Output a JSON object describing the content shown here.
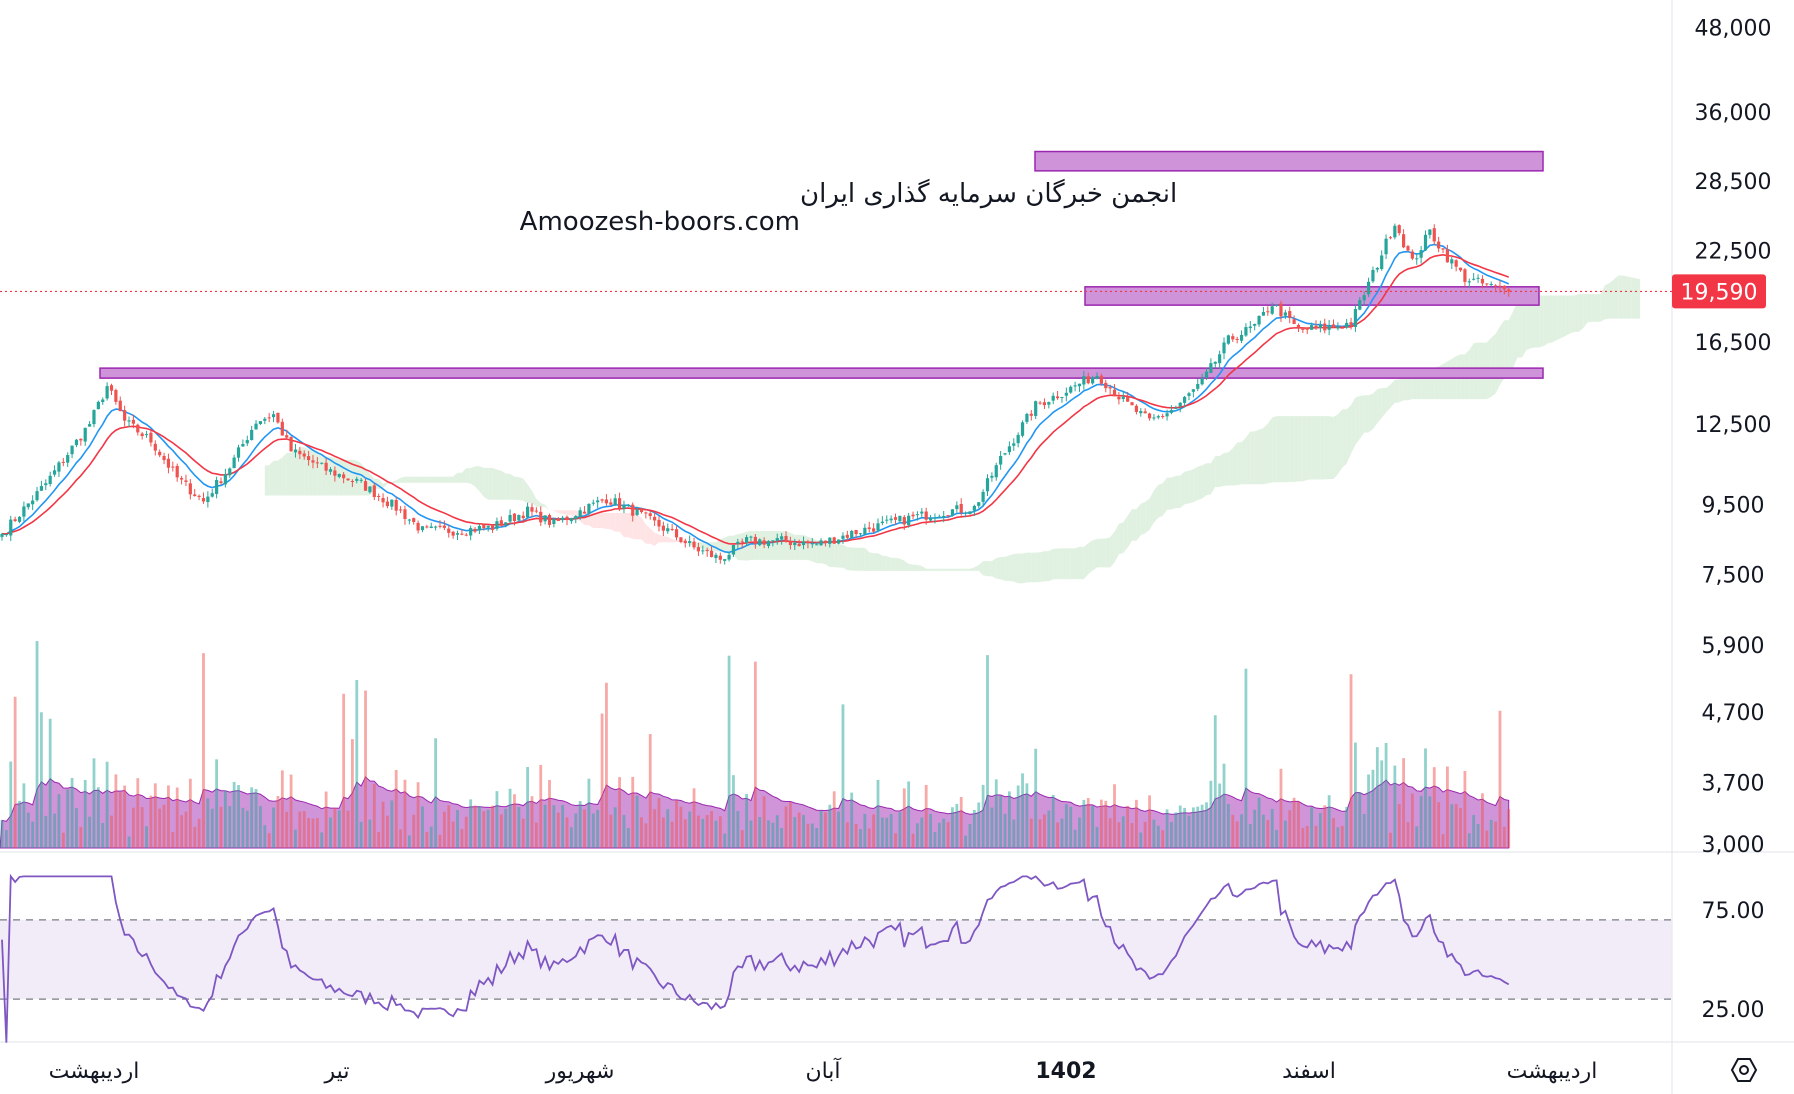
{
  "watermark": {
    "line1": "انجمن خبرگان سرمایه گذاری ایران",
    "line2": "Amoozesh-boors.com"
  },
  "icons": {
    "settings": "gear-hexagon-icon"
  },
  "colors": {
    "up": "#26a69a",
    "down": "#ef5350",
    "zone": "#ce93d8",
    "zone_border": "#9c27b0",
    "ema_fast": "#2196f3",
    "ema_slow": "#f23645",
    "rsi": "#7e57c2",
    "cloud_up": "#c8e6c9",
    "cloud_down": "#ffcdd2",
    "last_price": "#f23645",
    "vol_ma": "#ba68c8"
  },
  "chart_data": {
    "type": "candlestick",
    "price_scale": "log",
    "price_axis_labels": [
      "48,000",
      "36,000",
      "28,500",
      "22,500",
      "16,500",
      "12,500",
      "9,500",
      "7,500",
      "5,900",
      "4,700",
      "3,700",
      "3,000"
    ],
    "last_price": 19590,
    "last_price_label": "19,590",
    "time_labels": [
      {
        "label": "اردیبهشت",
        "bold": false
      },
      {
        "label": "تیر",
        "bold": false
      },
      {
        "label": "شهریور",
        "bold": false
      },
      {
        "label": "آبان",
        "bold": false
      },
      {
        "label": "1402",
        "bold": true
      },
      {
        "label": "اسفند",
        "bold": false
      },
      {
        "label": "اردیبهشت",
        "bold": false
      }
    ],
    "rsi_axis_labels": [
      "75.00",
      "25.00"
    ],
    "rsi_band": [
      70,
      30
    ],
    "zones": [
      {
        "low": 29500,
        "high": 31500
      },
      {
        "low": 18700,
        "high": 19900
      },
      {
        "low": 14600,
        "high": 15100
      }
    ],
    "close_anchors": [
      [
        0,
        8600
      ],
      [
        10,
        10200
      ],
      [
        20,
        12500
      ],
      [
        24,
        14200
      ],
      [
        28,
        12600
      ],
      [
        34,
        11800
      ],
      [
        40,
        10400
      ],
      [
        46,
        9600
      ],
      [
        52,
        10800
      ],
      [
        58,
        12600
      ],
      [
        62,
        12900
      ],
      [
        66,
        11400
      ],
      [
        74,
        10700
      ],
      [
        82,
        10200
      ],
      [
        90,
        9400
      ],
      [
        96,
        8700
      ],
      [
        104,
        8700
      ],
      [
        112,
        8800
      ],
      [
        120,
        9300
      ],
      [
        126,
        8900
      ],
      [
        132,
        9300
      ],
      [
        138,
        9700
      ],
      [
        144,
        9300
      ],
      [
        152,
        8700
      ],
      [
        158,
        8200
      ],
      [
        164,
        7900
      ],
      [
        170,
        8400
      ],
      [
        178,
        8400
      ],
      [
        186,
        8300
      ],
      [
        196,
        8700
      ],
      [
        208,
        9100
      ],
      [
        216,
        9300
      ],
      [
        222,
        9400
      ],
      [
        228,
        11100
      ],
      [
        236,
        13300
      ],
      [
        244,
        14100
      ],
      [
        250,
        14800
      ],
      [
        256,
        13500
      ],
      [
        262,
        12600
      ],
      [
        268,
        13200
      ],
      [
        274,
        14400
      ],
      [
        280,
        16600
      ],
      [
        286,
        17400
      ],
      [
        290,
        18800
      ],
      [
        296,
        17200
      ],
      [
        302,
        17300
      ],
      [
        308,
        17600
      ],
      [
        314,
        21500
      ],
      [
        318,
        24800
      ],
      [
        322,
        21600
      ],
      [
        326,
        24000
      ],
      [
        330,
        22000
      ],
      [
        334,
        20500
      ],
      [
        340,
        19900
      ],
      [
        344,
        19590
      ]
    ]
  }
}
